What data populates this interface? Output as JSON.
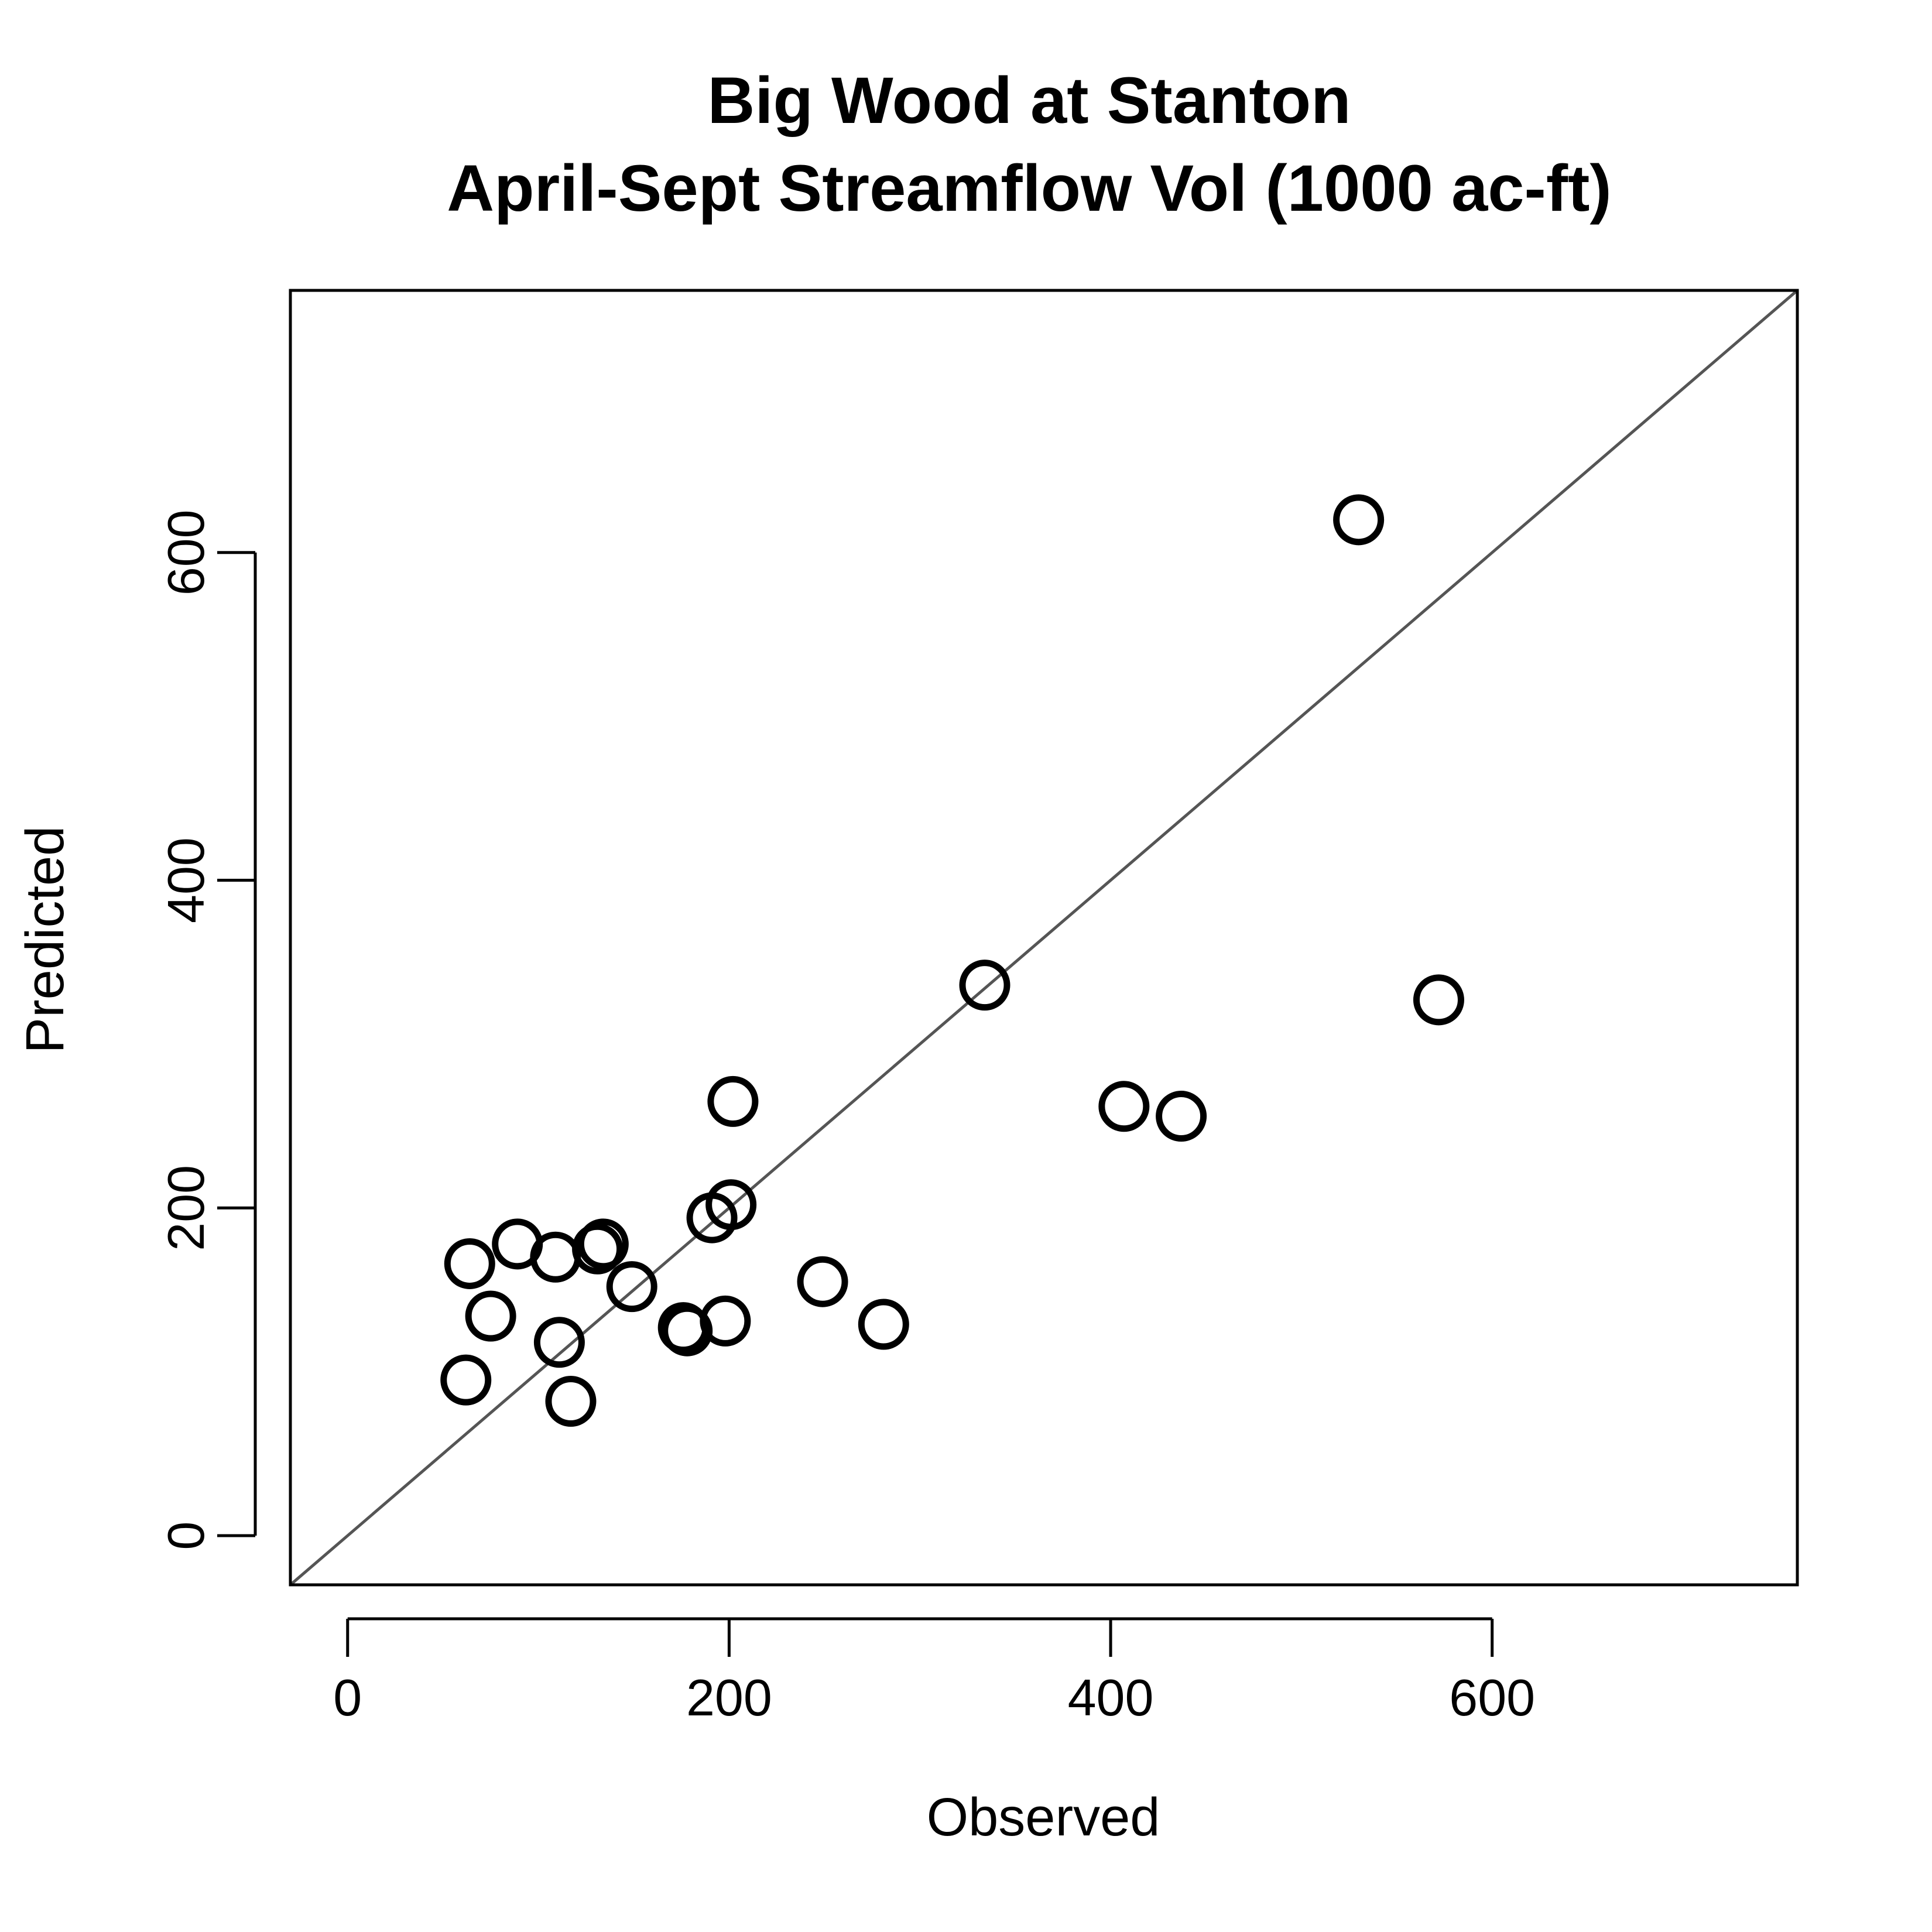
{
  "chart_data": {
    "type": "scatter",
    "title": "Big Wood at Stanton",
    "subtitle": "April-Sept Streamflow Vol (1000 ac-ft)",
    "xlabel": "Observed",
    "ylabel": "Predicted",
    "xlim": [
      -30,
      760
    ],
    "ylim": [
      -30,
      760
    ],
    "x_ticks": [
      0,
      200,
      400,
      600
    ],
    "y_ticks": [
      0,
      200,
      400,
      600
    ],
    "x_tick_labels": [
      "0",
      "200",
      "400",
      "600"
    ],
    "y_tick_labels": [
      "0",
      "200",
      "400",
      "600"
    ],
    "grid": false,
    "reference_line": "y = x",
    "series": [
      {
        "points": [
          {
            "x": 62,
            "y": 95
          },
          {
            "x": 64,
            "y": 166
          },
          {
            "x": 75,
            "y": 134
          },
          {
            "x": 89,
            "y": 178
          },
          {
            "x": 109,
            "y": 170
          },
          {
            "x": 111,
            "y": 118
          },
          {
            "x": 117,
            "y": 82
          },
          {
            "x": 131,
            "y": 175
          },
          {
            "x": 134,
            "y": 178
          },
          {
            "x": 149,
            "y": 152
          },
          {
            "x": 176,
            "y": 127
          },
          {
            "x": 178,
            "y": 125
          },
          {
            "x": 191,
            "y": 194
          },
          {
            "x": 198,
            "y": 131
          },
          {
            "x": 201,
            "y": 202
          },
          {
            "x": 202,
            "y": 265
          },
          {
            "x": 249,
            "y": 155
          },
          {
            "x": 281,
            "y": 129
          },
          {
            "x": 334,
            "y": 336
          },
          {
            "x": 407,
            "y": 262
          },
          {
            "x": 437,
            "y": 256
          },
          {
            "x": 530,
            "y": 620
          },
          {
            "x": 572,
            "y": 327
          }
        ]
      }
    ]
  }
}
